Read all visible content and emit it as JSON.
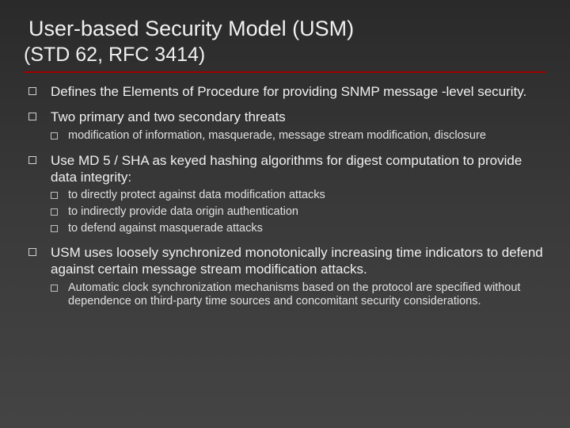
{
  "title": "User-based Security Model (USM)",
  "subtitle": "(STD 62, RFC 3414)",
  "colors": {
    "underline": "#a00000",
    "text": "#f0f0f0",
    "subtext": "#e0e0e0",
    "bg_top": "#2a2a2a",
    "bg_bottom": "#444444"
  },
  "bullets": [
    {
      "text": "Defines the Elements of Procedure for providing SNMP message -level security.",
      "children": []
    },
    {
      "text": "Two primary and two secondary threats",
      "children": [
        {
          "text": "modification of information, masquerade, message stream modification, disclosure"
        }
      ]
    },
    {
      "text": "Use MD 5 / SHA as keyed hashing algorithms for digest computation to provide data integrity:",
      "children": [
        {
          "text": "to directly protect against data modification attacks"
        },
        {
          "text": "to indirectly provide data origin authentication"
        },
        {
          "text": "to defend against masquerade attacks"
        }
      ]
    },
    {
      "text": "USM uses loosely synchronized monotonically increasing time indicators to defend against certain message stream modification attacks.",
      "children": [
        {
          "text": "Automatic clock synchronization mechanisms based on the protocol are specified without dependence on third-party time sources and concomitant security considerations."
        }
      ]
    }
  ]
}
